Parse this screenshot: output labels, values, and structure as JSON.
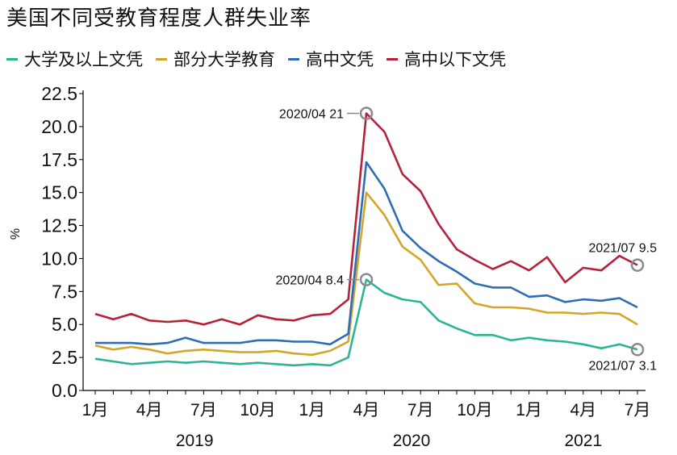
{
  "chart_data": {
    "type": "line",
    "title": "美国不同受教育程度人群失业率",
    "ylabel": "%",
    "ylim": [
      0,
      22.5
    ],
    "yticks": [
      0.0,
      2.5,
      5.0,
      7.5,
      10.0,
      12.5,
      15.0,
      17.5,
      20.0,
      22.5
    ],
    "ytick_labels": [
      "0.0",
      "2.5",
      "5.0",
      "7.5",
      "10.0",
      "12.5",
      "15.0",
      "17.5",
      "20.0",
      "22.5"
    ],
    "xtick_labels": [
      "1月",
      "4月",
      "7月",
      "10月",
      "1月",
      "4月",
      "7月",
      "10月",
      "1月",
      "4月",
      "7月"
    ],
    "years": [
      "2019",
      "2020",
      "2021"
    ],
    "x": [
      "2019-01",
      "2019-02",
      "2019-03",
      "2019-04",
      "2019-05",
      "2019-06",
      "2019-07",
      "2019-08",
      "2019-09",
      "2019-10",
      "2019-11",
      "2019-12",
      "2020-01",
      "2020-02",
      "2020-03",
      "2020-04",
      "2020-05",
      "2020-06",
      "2020-07",
      "2020-08",
      "2020-09",
      "2020-10",
      "2020-11",
      "2020-12",
      "2021-01",
      "2021-02",
      "2021-03",
      "2021-04",
      "2021-05",
      "2021-06",
      "2021-07"
    ],
    "legend_position": "top",
    "grid": false,
    "series": [
      {
        "name": "大学及以上文凭",
        "color": "#2db396",
        "values": [
          2.4,
          2.2,
          2.0,
          2.1,
          2.2,
          2.1,
          2.2,
          2.1,
          2.0,
          2.1,
          2.0,
          1.9,
          2.0,
          1.9,
          2.5,
          8.4,
          7.4,
          6.9,
          6.7,
          5.3,
          4.7,
          4.2,
          4.2,
          3.8,
          4.0,
          3.8,
          3.7,
          3.5,
          3.2,
          3.5,
          3.1
        ]
      },
      {
        "name": "部分大学教育",
        "color": "#d4a52a",
        "values": [
          3.4,
          3.1,
          3.3,
          3.1,
          2.8,
          3.0,
          3.1,
          3.0,
          2.9,
          2.9,
          3.0,
          2.8,
          2.7,
          3.0,
          3.7,
          15.0,
          13.3,
          10.9,
          9.9,
          8.0,
          8.1,
          6.6,
          6.3,
          6.3,
          6.2,
          5.9,
          5.9,
          5.8,
          5.9,
          5.8,
          5.0
        ]
      },
      {
        "name": "高中文凭",
        "color": "#2e6db4",
        "values": [
          3.6,
          3.6,
          3.6,
          3.5,
          3.6,
          4.0,
          3.6,
          3.6,
          3.6,
          3.8,
          3.8,
          3.7,
          3.7,
          3.5,
          4.3,
          17.3,
          15.3,
          12.1,
          10.8,
          9.8,
          9.0,
          8.1,
          7.8,
          7.8,
          7.1,
          7.2,
          6.7,
          6.9,
          6.8,
          7.0,
          6.3
        ]
      },
      {
        "name": "高中以下文凭",
        "color": "#b5213b",
        "values": [
          5.8,
          5.4,
          5.8,
          5.3,
          5.2,
          5.3,
          5.0,
          5.4,
          5.0,
          5.7,
          5.4,
          5.3,
          5.7,
          5.8,
          6.9,
          21.0,
          19.6,
          16.4,
          15.1,
          12.6,
          10.7,
          9.9,
          9.2,
          9.8,
          9.1,
          10.1,
          8.2,
          9.3,
          9.1,
          10.2,
          9.5
        ]
      }
    ],
    "annotations": [
      {
        "text": "2020/04 21",
        "series": 3,
        "index": 15,
        "side": "left"
      },
      {
        "text": "2020/04 8.4",
        "series": 0,
        "index": 15,
        "side": "left"
      },
      {
        "text": "2021/07 9.5",
        "series": 3,
        "index": 30,
        "side": "above"
      },
      {
        "text": "2021/07 3.1",
        "series": 0,
        "index": 30,
        "side": "below"
      }
    ]
  }
}
